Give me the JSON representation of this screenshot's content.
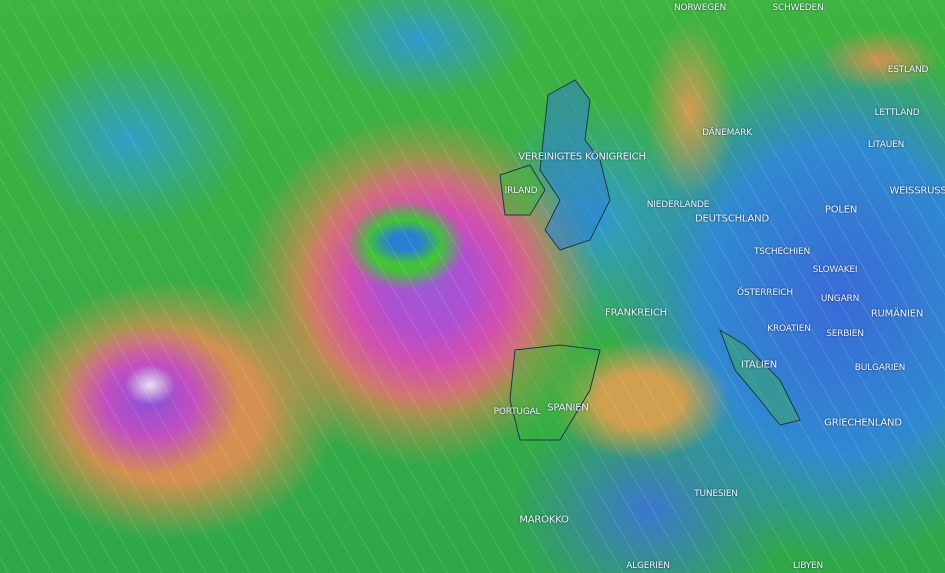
{
  "map": {
    "layer": "wind",
    "colors": {
      "calm": "#2f8ad0",
      "moderate": "#3fb440",
      "strong": "#d49050",
      "storm": "#c24fc0"
    },
    "labels": [
      {
        "id": "norwegen",
        "text": "NORWEGEN"
      },
      {
        "id": "schweden",
        "text": "SCHWEDEN"
      },
      {
        "id": "estland",
        "text": "ESTLAND"
      },
      {
        "id": "lettland",
        "text": "LETTLAND"
      },
      {
        "id": "litauen",
        "text": "LITAUEN"
      },
      {
        "id": "daenemark",
        "text": "DÄNEMARK"
      },
      {
        "id": "uk",
        "text": "VEREINIGTES KÖNIGREICH"
      },
      {
        "id": "irland",
        "text": "IRLAND"
      },
      {
        "id": "niederlande",
        "text": "NIEDERLANDE"
      },
      {
        "id": "deutschland",
        "text": "DEUTSCHLAND"
      },
      {
        "id": "polen",
        "text": "POLEN"
      },
      {
        "id": "weissrussland",
        "text": "WEISSRUSS"
      },
      {
        "id": "tschechien",
        "text": "TSCHECHIEN"
      },
      {
        "id": "slowakei",
        "text": "SLOWAKEI"
      },
      {
        "id": "oesterreich",
        "text": "ÖSTERREICH"
      },
      {
        "id": "ungarn",
        "text": "UNGARN"
      },
      {
        "id": "frankreich",
        "text": "FRANKREICH"
      },
      {
        "id": "rumaenien",
        "text": "RUMÄNIEN"
      },
      {
        "id": "kroatien",
        "text": "KROATIEN"
      },
      {
        "id": "serbien",
        "text": "SERBIEN"
      },
      {
        "id": "italien",
        "text": "ITALIEN"
      },
      {
        "id": "bulgarien",
        "text": "BULGARIEN"
      },
      {
        "id": "portugal",
        "text": "PORTUGAL"
      },
      {
        "id": "spanien",
        "text": "SPANIEN"
      },
      {
        "id": "griechenland",
        "text": "GRIECHENLAND"
      },
      {
        "id": "tunesien",
        "text": "TUNESIEN"
      },
      {
        "id": "marokko",
        "text": "MAROKKO"
      },
      {
        "id": "algerien",
        "text": "ALGERIEN"
      },
      {
        "id": "libyen",
        "text": "LIBYEN"
      }
    ]
  }
}
